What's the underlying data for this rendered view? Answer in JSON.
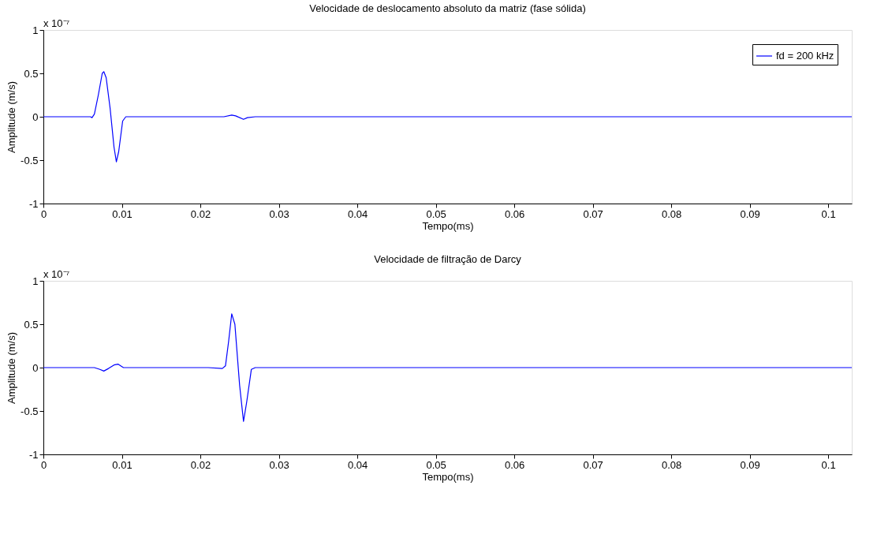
{
  "chart_data": [
    {
      "type": "line",
      "title": "Velocidade de deslocamento absoluto da matriz (fase sólida)",
      "xlabel": "Tempo(ms)",
      "ylabel": "Amplitude (m/s)",
      "annotations": [
        "x 10⁻⁷"
      ],
      "series": [
        {
          "name": "fd = 200 kHz",
          "color": "#0000ff",
          "x": [
            0,
            0.006,
            0.0062,
            0.0065,
            0.007,
            0.0075,
            0.0077,
            0.008,
            0.0085,
            0.009,
            0.0093,
            0.0096,
            0.0101,
            0.0105,
            0.023,
            0.024,
            0.0245,
            0.0255,
            0.026,
            0.027,
            0.103
          ],
          "values": [
            0,
            0,
            -0.01,
            0.03,
            0.25,
            0.5,
            0.52,
            0.45,
            0.1,
            -0.35,
            -0.52,
            -0.4,
            -0.05,
            0,
            0,
            0.02,
            0.01,
            -0.03,
            -0.01,
            0,
            0
          ]
        }
      ],
      "xlim": [
        0,
        0.103
      ],
      "xticks": [
        0,
        0.01,
        0.02,
        0.03,
        0.04,
        0.05,
        0.06,
        0.07,
        0.08,
        0.09,
        0.1
      ],
      "ylim": [
        -1,
        1
      ],
      "yticks": [
        -1,
        -0.5,
        0,
        0.5,
        1
      ],
      "grid": false,
      "legend": "top right",
      "marker": "none",
      "line_style": "solid"
    },
    {
      "type": "line",
      "title": "Velocidade de filtração de Darcy",
      "xlabel": "Tempo(ms)",
      "ylabel": "Amplitude (m/s)",
      "annotations": [
        "x 10⁻⁷"
      ],
      "series": [
        {
          "name": "fd = 200 kHz",
          "color": "#0000ff",
          "x": [
            0,
            0.0065,
            0.0072,
            0.0077,
            0.0083,
            0.009,
            0.0095,
            0.0102,
            0.021,
            0.0228,
            0.0232,
            0.0236,
            0.024,
            0.0244,
            0.025,
            0.0255,
            0.0259,
            0.0265,
            0.027,
            0.103
          ],
          "values": [
            0,
            0,
            -0.02,
            -0.04,
            -0.01,
            0.03,
            0.04,
            0,
            0,
            -0.01,
            0.02,
            0.3,
            0.62,
            0.5,
            -0.2,
            -0.62,
            -0.4,
            -0.02,
            0,
            0
          ]
        }
      ],
      "xlim": [
        0,
        0.103
      ],
      "xticks": [
        0,
        0.01,
        0.02,
        0.03,
        0.04,
        0.05,
        0.06,
        0.07,
        0.08,
        0.09,
        0.1
      ],
      "ylim": [
        -1,
        1
      ],
      "yticks": [
        -1,
        -0.5,
        0,
        0.5,
        1
      ],
      "grid": false,
      "legend": "top right",
      "marker": "none",
      "line_style": "solid"
    }
  ]
}
